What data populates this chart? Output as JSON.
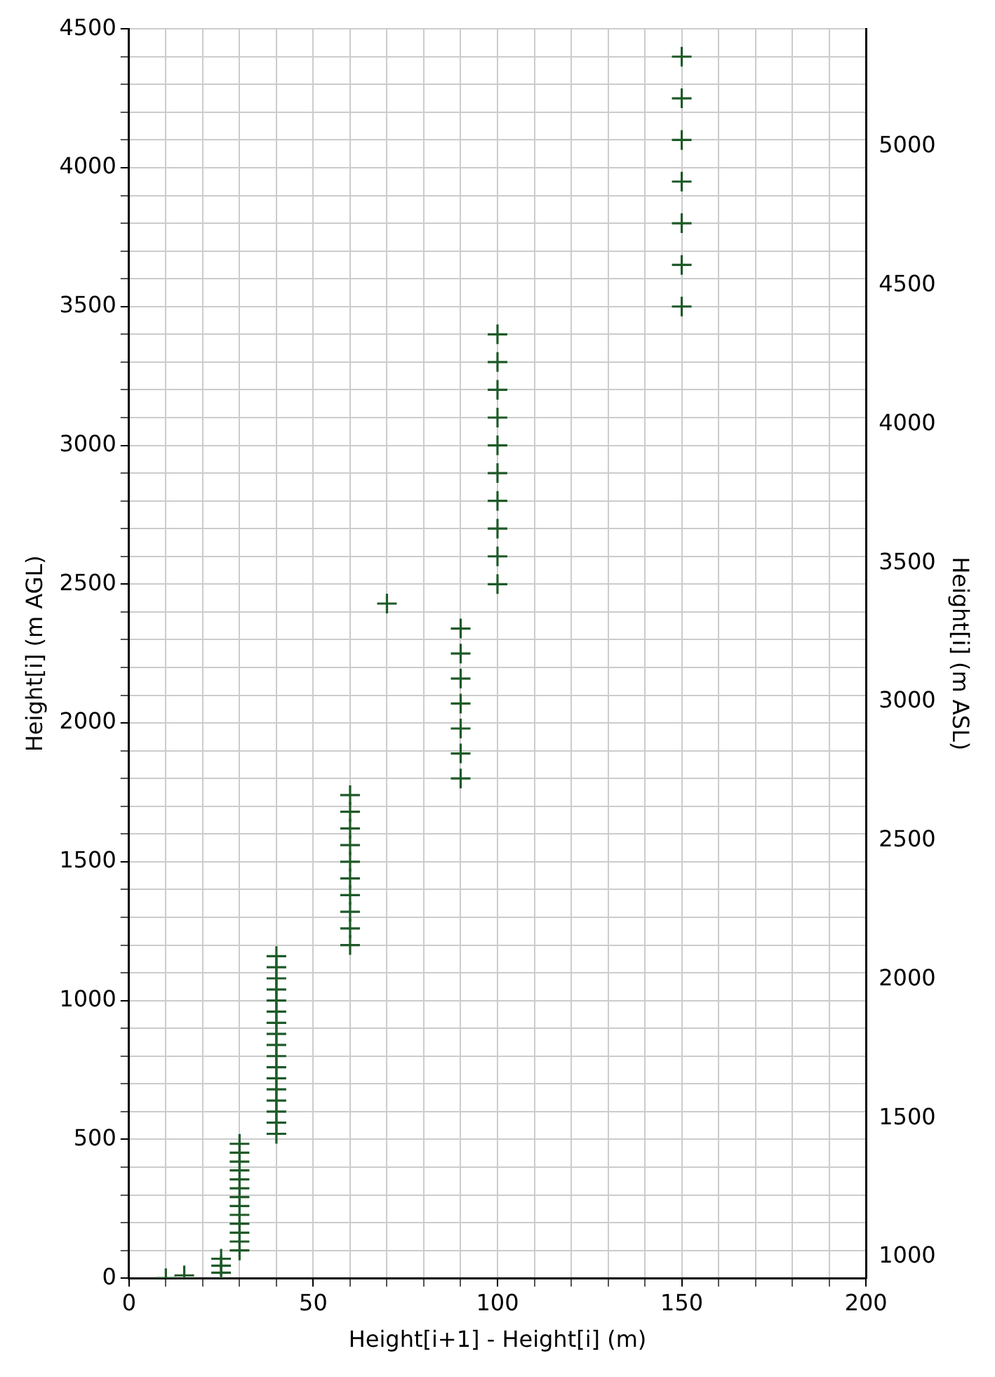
{
  "chart_data": {
    "type": "scatter",
    "xlabel": "Height[i+1] - Height[i] (m)",
    "ylabel": "Height[i] (m AGL)",
    "y2label": "Height[i] (m ASL)",
    "marker": "cross",
    "grid": true,
    "legend": false,
    "xlim": [
      0,
      200
    ],
    "ylim": [
      0,
      4500
    ],
    "y2lim": [
      924,
      5424
    ],
    "xticks": [
      0,
      {
        "value": 10,
        "label": null
      },
      {
        "value": 20,
        "label": null
      },
      {
        "value": 30,
        "label": null
      },
      {
        "value": 40,
        "label": null
      },
      50,
      {
        "value": 60,
        "label": null
      },
      {
        "value": 70,
        "label": null
      },
      {
        "value": 80,
        "label": null
      },
      {
        "value": 90,
        "label": null
      },
      100,
      {
        "value": 110,
        "label": null
      },
      {
        "value": 120,
        "label": null
      },
      {
        "value": 130,
        "label": null
      },
      {
        "value": 140,
        "label": null
      },
      150,
      {
        "value": 160,
        "label": null
      },
      {
        "value": 170,
        "label": null
      },
      {
        "value": 180,
        "label": null
      },
      {
        "value": 190,
        "label": null
      },
      200
    ],
    "yticks": [
      0,
      {
        "value": 100,
        "label": null
      },
      {
        "value": 200,
        "label": null
      },
      {
        "value": 300,
        "label": null
      },
      {
        "value": 400,
        "label": null
      },
      500,
      {
        "value": 600,
        "label": null
      },
      {
        "value": 700,
        "label": null
      },
      {
        "value": 800,
        "label": null
      },
      {
        "value": 900,
        "label": null
      },
      1000,
      {
        "value": 1100,
        "label": null
      },
      {
        "value": 1200,
        "label": null
      },
      {
        "value": 1300,
        "label": null
      },
      {
        "value": 1400,
        "label": null
      },
      1500,
      {
        "value": 1600,
        "label": null
      },
      {
        "value": 1700,
        "label": null
      },
      {
        "value": 1800,
        "label": null
      },
      {
        "value": 1900,
        "label": null
      },
      2000,
      {
        "value": 2100,
        "label": null
      },
      {
        "value": 2200,
        "label": null
      },
      {
        "value": 2300,
        "label": null
      },
      {
        "value": 2400,
        "label": null
      },
      2500,
      {
        "value": 2600,
        "label": null
      },
      {
        "value": 2700,
        "label": null
      },
      {
        "value": 2800,
        "label": null
      },
      {
        "value": 2900,
        "label": null
      },
      3000,
      {
        "value": 3100,
        "label": null
      },
      {
        "value": 3200,
        "label": null
      },
      {
        "value": 3300,
        "label": null
      },
      {
        "value": 3400,
        "label": null
      },
      3500,
      {
        "value": 3600,
        "label": null
      },
      {
        "value": 3700,
        "label": null
      },
      {
        "value": 3800,
        "label": null
      },
      {
        "value": 3900,
        "label": null
      },
      4000,
      {
        "value": 4100,
        "label": null
      },
      {
        "value": 4200,
        "label": null
      },
      {
        "value": 4300,
        "label": null
      },
      {
        "value": 4400,
        "label": null
      },
      4500
    ],
    "y2ticks": [
      {
        "value": 1000,
        "label": "1000"
      },
      {
        "value": 1500,
        "label": "1500"
      },
      {
        "value": 2000,
        "label": "2000"
      },
      {
        "value": 2500,
        "label": "2500"
      },
      {
        "value": 3000,
        "label": "3000"
      },
      {
        "value": 3500,
        "label": "3500"
      },
      {
        "value": 4000,
        "label": "4000"
      },
      {
        "value": 4500,
        "label": "4500"
      },
      {
        "value": 5000,
        "label": "5000"
      }
    ],
    "series": [
      {
        "color": "#1e5a28",
        "x": [
          10,
          15,
          25,
          25,
          25,
          30,
          30,
          30,
          30,
          30,
          30,
          30,
          30,
          30,
          30,
          30,
          30,
          30,
          40,
          40,
          40,
          40,
          40,
          40,
          40,
          40,
          40,
          40,
          40,
          40,
          40,
          40,
          40,
          40,
          40,
          60,
          60,
          60,
          60,
          60,
          60,
          60,
          60,
          60,
          60,
          90,
          90,
          90,
          90,
          90,
          90,
          90,
          70,
          100,
          100,
          100,
          100,
          100,
          100,
          100,
          100,
          100,
          100,
          150,
          150,
          150,
          150,
          150,
          150,
          150
        ],
        "values": [
          0,
          10,
          20,
          45,
          70,
          100,
          132,
          164,
          196,
          228,
          260,
          292,
          324,
          356,
          388,
          420,
          452,
          484,
          520,
          560,
          600,
          640,
          680,
          720,
          760,
          800,
          840,
          880,
          920,
          960,
          1000,
          1040,
          1080,
          1120,
          1160,
          1200,
          1260,
          1320,
          1380,
          1440,
          1500,
          1560,
          1620,
          1680,
          1740,
          1800,
          1890,
          1980,
          2070,
          2160,
          2250,
          2340,
          2430,
          2500,
          2600,
          2700,
          2800,
          2900,
          3000,
          3100,
          3200,
          3300,
          3400,
          3500,
          3650,
          3800,
          3950,
          4100,
          4250,
          4400
        ]
      }
    ]
  }
}
